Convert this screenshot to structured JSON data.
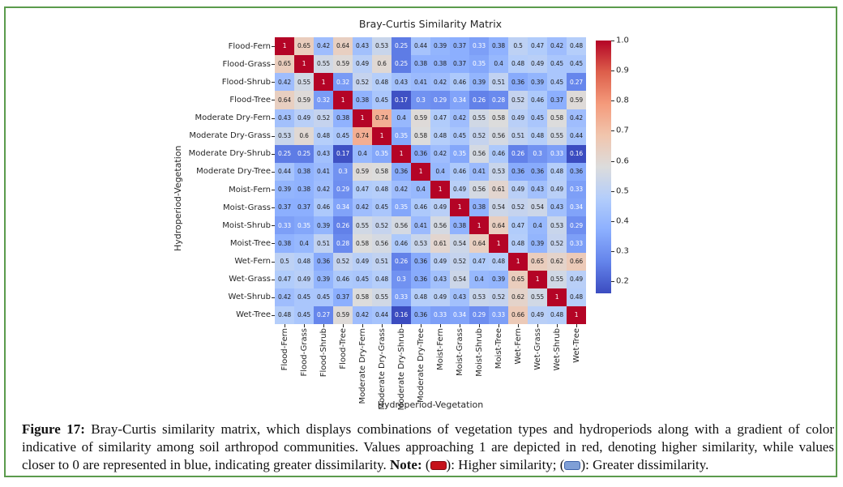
{
  "chart_data": {
    "type": "heatmap",
    "title": "Bray-Curtis Similarity Matrix",
    "xlabel": "Hydroperiod-Vegetation",
    "ylabel": "Hydroperiod-Vegetation",
    "colormap": "coolwarm",
    "vmin": 0.16,
    "vmax": 1.0,
    "colorbar_ticks": [
      1.0,
      0.9,
      0.8,
      0.7,
      0.6,
      0.5,
      0.4,
      0.3,
      0.2
    ],
    "categories": [
      "Flood-Fern",
      "Flood-Grass",
      "Flood-Shrub",
      "Flood-Tree",
      "Moderate Dry-Fern",
      "Moderate Dry-Grass",
      "Moderate Dry-Shrub",
      "Moderate Dry-Tree",
      "Moist-Fern",
      "Moist-Grass",
      "Moist-Shrub",
      "Moist-Tree",
      "Wet-Fern",
      "Wet-Grass",
      "Wet-Shrub",
      "Wet-Tree"
    ],
    "matrix": [
      [
        1,
        0.65,
        0.42,
        0.64,
        0.43,
        0.53,
        0.25,
        0.44,
        0.39,
        0.37,
        0.33,
        0.38,
        0.5,
        0.47,
        0.42,
        0.48
      ],
      [
        0.65,
        1,
        0.55,
        0.59,
        0.49,
        0.6,
        0.25,
        0.38,
        0.38,
        0.37,
        0.35,
        0.4,
        0.48,
        0.49,
        0.45,
        0.45
      ],
      [
        0.42,
        0.55,
        1,
        0.32,
        0.52,
        0.48,
        0.43,
        0.41,
        0.42,
        0.46,
        0.39,
        0.51,
        0.36,
        0.39,
        0.45,
        0.27
      ],
      [
        0.64,
        0.59,
        0.32,
        1,
        0.38,
        0.45,
        0.17,
        0.3,
        0.29,
        0.34,
        0.26,
        0.28,
        0.52,
        0.46,
        0.37,
        0.59
      ],
      [
        0.43,
        0.49,
        0.52,
        0.38,
        1,
        0.74,
        0.4,
        0.59,
        0.47,
        0.42,
        0.55,
        0.58,
        0.49,
        0.45,
        0.58,
        0.42
      ],
      [
        0.53,
        0.6,
        0.48,
        0.45,
        0.74,
        1,
        0.35,
        0.58,
        0.48,
        0.45,
        0.52,
        0.56,
        0.51,
        0.48,
        0.55,
        0.44
      ],
      [
        0.25,
        0.25,
        0.43,
        0.17,
        0.4,
        0.35,
        1,
        0.36,
        0.42,
        0.35,
        0.56,
        0.46,
        0.26,
        0.3,
        0.33,
        0.16
      ],
      [
        0.44,
        0.38,
        0.41,
        0.3,
        0.59,
        0.58,
        0.36,
        1,
        0.4,
        0.46,
        0.41,
        0.53,
        0.36,
        0.36,
        0.48,
        0.36
      ],
      [
        0.39,
        0.38,
        0.42,
        0.29,
        0.47,
        0.48,
        0.42,
        0.4,
        1,
        0.49,
        0.56,
        0.61,
        0.49,
        0.43,
        0.49,
        0.33
      ],
      [
        0.37,
        0.37,
        0.46,
        0.34,
        0.42,
        0.45,
        0.35,
        0.46,
        0.49,
        1,
        0.38,
        0.54,
        0.52,
        0.54,
        0.43,
        0.34
      ],
      [
        0.33,
        0.35,
        0.39,
        0.26,
        0.55,
        0.52,
        0.56,
        0.41,
        0.56,
        0.38,
        1,
        0.64,
        0.47,
        0.4,
        0.53,
        0.29
      ],
      [
        0.38,
        0.4,
        0.51,
        0.28,
        0.58,
        0.56,
        0.46,
        0.53,
        0.61,
        0.54,
        0.64,
        1,
        0.48,
        0.39,
        0.52,
        0.33
      ],
      [
        0.5,
        0.48,
        0.36,
        0.52,
        0.49,
        0.51,
        0.26,
        0.36,
        0.49,
        0.52,
        0.47,
        0.48,
        1,
        0.65,
        0.62,
        0.66
      ],
      [
        0.47,
        0.49,
        0.39,
        0.46,
        0.45,
        0.48,
        0.3,
        0.36,
        0.43,
        0.54,
        0.4,
        0.39,
        0.65,
        1,
        0.55,
        0.49
      ],
      [
        0.42,
        0.45,
        0.45,
        0.37,
        0.58,
        0.55,
        0.33,
        0.48,
        0.49,
        0.43,
        0.53,
        0.52,
        0.62,
        0.55,
        1,
        0.48
      ],
      [
        0.48,
        0.45,
        0.27,
        0.59,
        0.42,
        0.44,
        0.16,
        0.36,
        0.33,
        0.34,
        0.29,
        0.33,
        0.66,
        0.49,
        0.48,
        1
      ]
    ]
  },
  "caption": {
    "label": "Figure 17:",
    "body": " Bray-Curtis similarity matrix, which displays combinations of vegetation types and hydroperiods along with a gradient of color indicative of similarity among soil arthropod communities. Values approaching 1 are depicted in red, denoting higher similarity, while values closer to 0 are represented in blue, indicating greater dissimilarity. ",
    "note_label": "Note:",
    "red_open": " (",
    "red_close": "): Higher similarity; (",
    "blue_close": "): Greater dissimilarity."
  },
  "colors": {
    "border_green": "#5b9b4d",
    "note_red": "#c5121b",
    "note_red_border": "#7d0a12",
    "note_blue": "#7f9fd6",
    "note_blue_border": "#3f63a8",
    "annot_dark": "#1c1c1c",
    "annot_light": "#ffffff",
    "colormap_anchors": [
      [
        0,
        "#3b4cc0"
      ],
      [
        0.125,
        "#6484eb"
      ],
      [
        0.25,
        "#8caffe"
      ],
      [
        0.375,
        "#b3cdfb"
      ],
      [
        0.5,
        "#dcdcdc"
      ],
      [
        0.625,
        "#f1c5ad"
      ],
      [
        0.75,
        "#f49a7b"
      ],
      [
        0.875,
        "#dd5f4b"
      ],
      [
        1,
        "#b40426"
      ]
    ]
  }
}
